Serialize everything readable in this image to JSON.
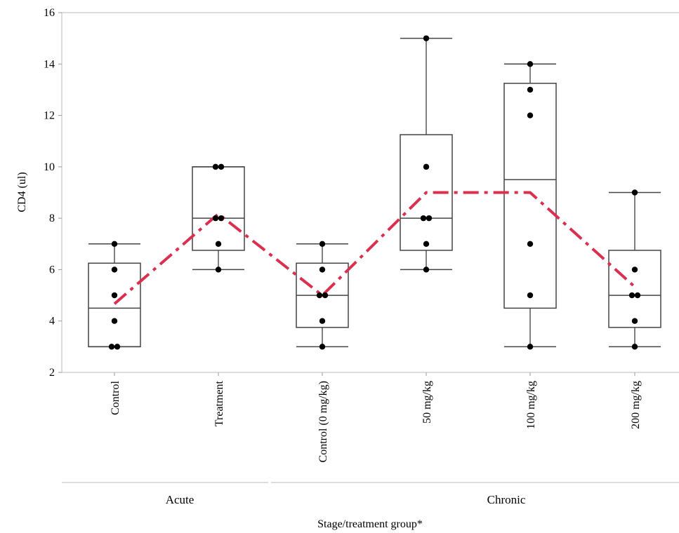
{
  "chart_data": {
    "type": "box",
    "ylabel": "CD4 (ul)",
    "xlabel": "Stage/treatment group*",
    "ylim": [
      2,
      16
    ],
    "yticks": [
      2,
      4,
      6,
      8,
      10,
      12,
      14,
      16
    ],
    "grid": false,
    "groups": [
      {
        "label": "Acute",
        "categories": [
          0,
          1
        ]
      },
      {
        "label": "Chronic",
        "categories": [
          2,
          3,
          4,
          5
        ]
      }
    ],
    "categories": [
      "Control",
      "Treatment",
      "Control (0 mg/kg)",
      "50 mg/kg",
      "100 mg/kg",
      "200 mg/kg"
    ],
    "boxes": [
      {
        "min": 3,
        "q1": 3,
        "median": 4.5,
        "q3": 6.25,
        "max": 7,
        "mean": 4.67,
        "points": [
          3,
          3,
          4,
          5,
          6,
          7
        ]
      },
      {
        "min": 6,
        "q1": 6.75,
        "median": 8,
        "q3": 10,
        "max": 10,
        "mean": 8.17,
        "points": [
          6,
          7,
          8,
          8,
          10,
          10
        ]
      },
      {
        "min": 3,
        "q1": 3.75,
        "median": 5,
        "q3": 6.25,
        "max": 7,
        "mean": 5,
        "points": [
          3,
          4,
          5,
          5,
          6,
          7
        ]
      },
      {
        "min": 6,
        "q1": 6.75,
        "median": 8,
        "q3": 11.25,
        "max": 15,
        "mean": 9,
        "points": [
          6,
          7,
          8,
          8,
          10,
          15
        ]
      },
      {
        "min": 3,
        "q1": 4.5,
        "median": 9.5,
        "q3": 13.25,
        "max": 14,
        "mean": 9,
        "points": [
          3,
          5,
          7,
          12,
          13,
          14
        ]
      },
      {
        "min": 3,
        "q1": 3.75,
        "median": 5,
        "q3": 6.75,
        "max": 9,
        "mean": 5.33,
        "points": [
          3,
          4,
          5,
          5,
          6,
          9
        ]
      }
    ],
    "mean_line": {
      "color": "#d9304f",
      "style": "dash-dot"
    }
  }
}
